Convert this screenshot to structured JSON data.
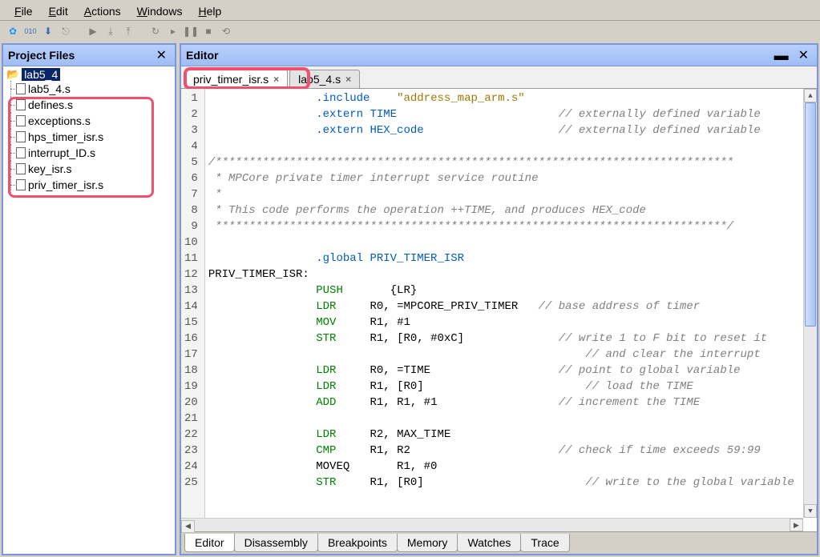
{
  "menu": {
    "items": [
      "File",
      "Edit",
      "Actions",
      "Windows",
      "Help"
    ]
  },
  "sidebar": {
    "title": "Project Files",
    "root": "lab5_4",
    "items": [
      "lab5_4.s",
      "defines.s",
      "exceptions.s",
      "hps_timer_isr.s",
      "interrupt_ID.s",
      "key_isr.s",
      "priv_timer_isr.s"
    ]
  },
  "editor": {
    "title": "Editor",
    "tabs": [
      {
        "label": "priv_timer_isr.s",
        "active": true
      },
      {
        "label": "lab5_4.s",
        "active": false
      }
    ],
    "code": [
      {
        "n": 1,
        "t": "dir",
        "text": "                .include    ",
        "tail": "\"address_map_arm.s\"",
        "tail_cls": "str"
      },
      {
        "n": 2,
        "t": "dir",
        "text": "                .extern TIME                        ",
        "tail": "// externally defined variable",
        "tail_cls": "com"
      },
      {
        "n": 3,
        "t": "dir",
        "text": "                .extern HEX_code                    ",
        "tail": "// externally defined variable",
        "tail_cls": "com"
      },
      {
        "n": 4,
        "t": "",
        "text": ""
      },
      {
        "n": 5,
        "t": "com",
        "text": "/*****************************************************************************"
      },
      {
        "n": 6,
        "t": "com",
        "text": " * MPCore private timer interrupt service routine"
      },
      {
        "n": 7,
        "t": "com",
        "text": " *"
      },
      {
        "n": 8,
        "t": "com",
        "text": " * This code performs the operation ++TIME, and produces HEX_code"
      },
      {
        "n": 9,
        "t": "com",
        "text": " ****************************************************************************/"
      },
      {
        "n": 10,
        "t": "",
        "text": ""
      },
      {
        "n": 11,
        "t": "dir",
        "text": "                .global PRIV_TIMER_ISR"
      },
      {
        "n": 12,
        "t": "",
        "text": "PRIV_TIMER_ISR:"
      },
      {
        "n": 13,
        "t": "kw",
        "text": "                PUSH       {LR}"
      },
      {
        "n": 14,
        "t": "kw",
        "text": "                LDR     R0, =MPCORE_PRIV_TIMER   ",
        "tail": "// base address of timer",
        "tail_cls": "com"
      },
      {
        "n": 15,
        "t": "kw",
        "text": "                MOV     R1, #1"
      },
      {
        "n": 16,
        "t": "kw",
        "text": "                STR     R1, [R0, #0xC]              ",
        "tail": "// write 1 to F bit to reset it",
        "tail_cls": "com"
      },
      {
        "n": 17,
        "t": "",
        "text": "                                                        ",
        "tail": "// and clear the interrupt",
        "tail_cls": "com"
      },
      {
        "n": 18,
        "t": "kw",
        "text": "                LDR     R0, =TIME                   ",
        "tail": "// point to global variable",
        "tail_cls": "com"
      },
      {
        "n": 19,
        "t": "kw",
        "text": "                LDR     R1, [R0]                        ",
        "tail": "// load the TIME",
        "tail_cls": "com"
      },
      {
        "n": 20,
        "t": "kw",
        "text": "                ADD     R1, R1, #1                  ",
        "tail": "// increment the TIME",
        "tail_cls": "com"
      },
      {
        "n": 21,
        "t": "",
        "text": ""
      },
      {
        "n": 22,
        "t": "kw",
        "text": "                LDR     R2, MAX_TIME"
      },
      {
        "n": 23,
        "t": "kw",
        "text": "                CMP     R1, R2                      ",
        "tail": "// check if time exceeds 59:99",
        "tail_cls": "com"
      },
      {
        "n": 24,
        "t": "",
        "text": "                MOVEQ       R1, #0"
      },
      {
        "n": 25,
        "t": "kw",
        "text": "                STR     R1, [R0]                        ",
        "tail": "// write to the global variable",
        "tail_cls": "com"
      }
    ]
  },
  "bottomTabs": [
    "Editor",
    "Disassembly",
    "Breakpoints",
    "Memory",
    "Watches",
    "Trace"
  ],
  "colors": {
    "accent": "#7a96df",
    "titlebar_from": "#b8d0ff",
    "titlebar_to": "#9fbcf4",
    "highlight": "#f14f6f",
    "selection": "#0a246a"
  }
}
